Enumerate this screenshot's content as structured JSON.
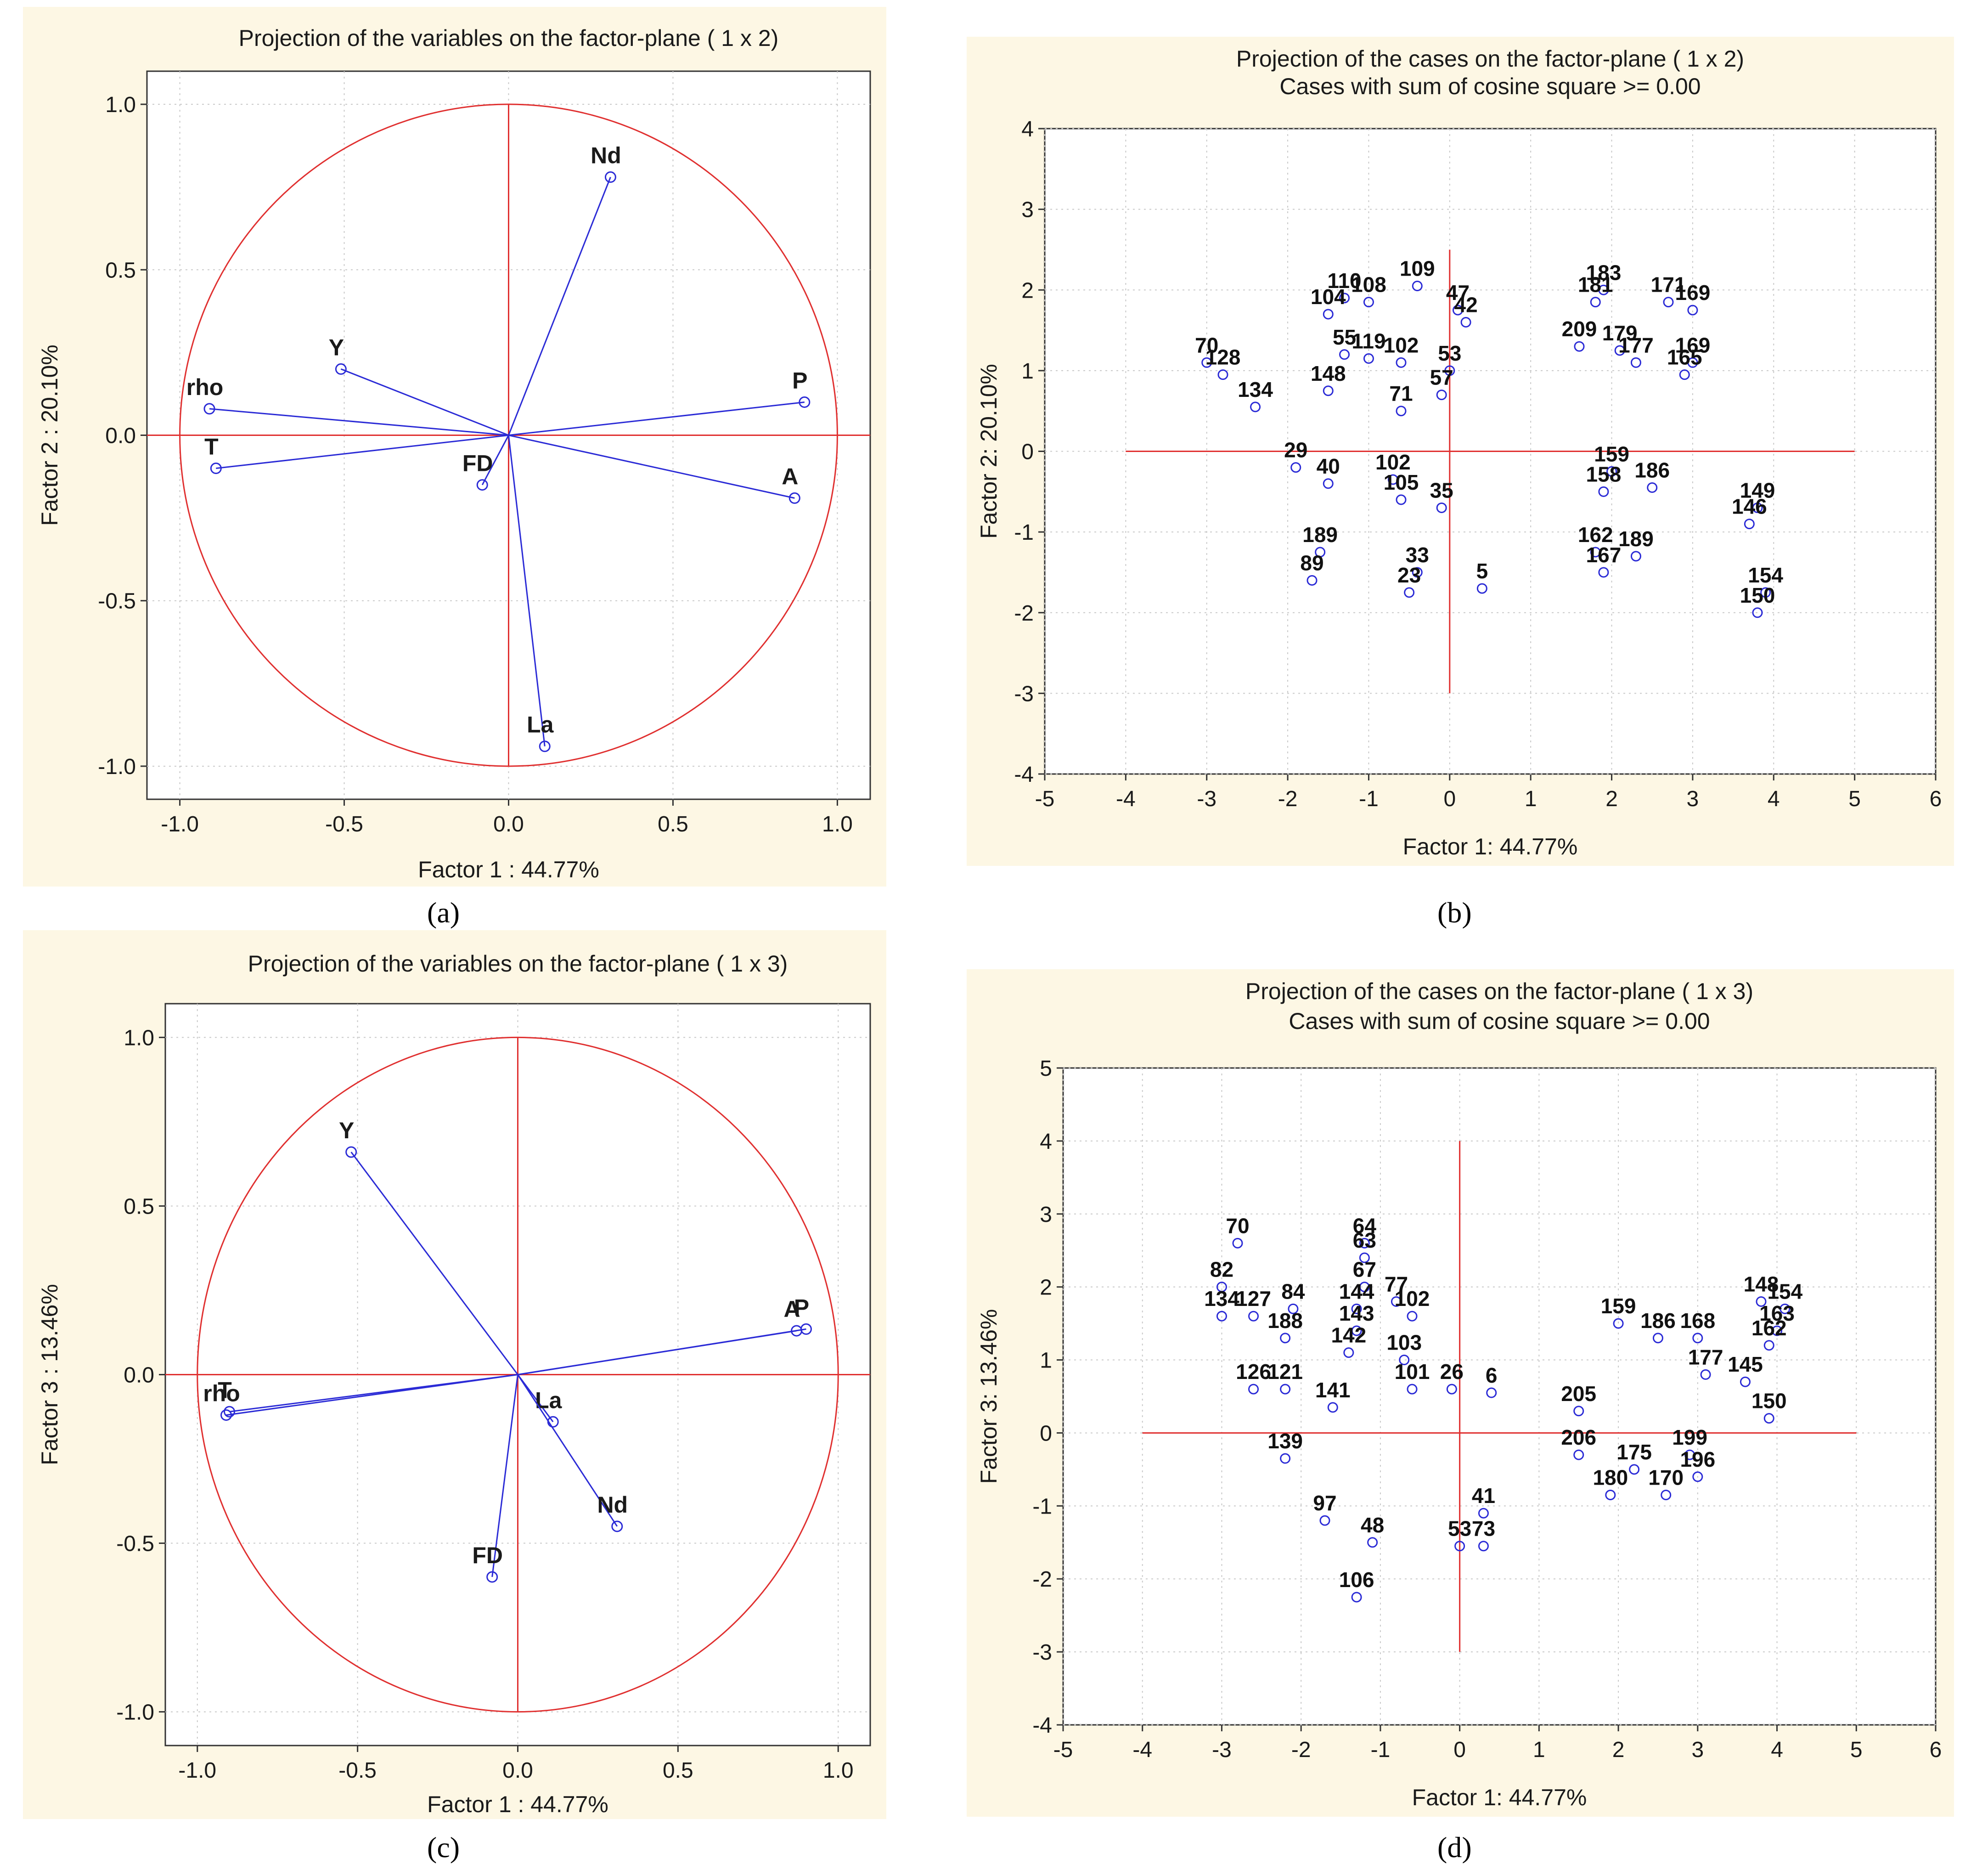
{
  "colors": {
    "background": "#fdf7e4",
    "reference": "#e03030",
    "points": "#2b2bd6",
    "grid": "#c8c8c8"
  },
  "chart_data": [
    {
      "id": "a",
      "type": "scatter",
      "title": "Projection of the variables on the factor-plane (  1 x   2)",
      "subtitle": "",
      "xlabel": "Factor 1 : 44.77%",
      "ylabel": "Factor 2 : 20.10%",
      "xlim": [
        -1.1,
        1.1
      ],
      "ylim": [
        -1.1,
        1.1
      ],
      "xticks": [
        "-1.0",
        "-0.5",
        "0.0",
        "0.5",
        "1.0"
      ],
      "yticks": [
        "1.0",
        "0.5",
        "0.0",
        "-0.5",
        "-1.0"
      ],
      "grid": true,
      "unit_circle": true,
      "points": [
        {
          "label": "Nd",
          "x": 0.31,
          "y": 0.78
        },
        {
          "label": "Y",
          "x": -0.51,
          "y": 0.2
        },
        {
          "label": "rho",
          "x": -0.91,
          "y": 0.08
        },
        {
          "label": "P",
          "x": 0.9,
          "y": 0.1
        },
        {
          "label": "T",
          "x": -0.89,
          "y": -0.1
        },
        {
          "label": "FD",
          "x": -0.08,
          "y": -0.15
        },
        {
          "label": "A",
          "x": 0.87,
          "y": -0.19
        },
        {
          "label": "La",
          "x": 0.11,
          "y": -0.94
        }
      ]
    },
    {
      "id": "b",
      "type": "scatter",
      "title": "Projection of the cases on the factor-plane (  1 x   2)",
      "subtitle": "Cases with sum of cosine square >=  0.00",
      "xlabel": "Factor 1: 44.77%",
      "ylabel": "Factor 2: 20.10%",
      "xlim": [
        -5,
        6
      ],
      "ylim": [
        -4,
        4
      ],
      "xticks": [
        "-5",
        "-4",
        "-3",
        "-2",
        "-1",
        "0",
        "1",
        "2",
        "3",
        "4",
        "5",
        "6"
      ],
      "yticks": [
        "4",
        "3",
        "2",
        "1",
        "0",
        "-1",
        "-2",
        "-3",
        "-4"
      ],
      "grid": true,
      "points": [
        {
          "label": "109",
          "x": -0.4,
          "y": 2.05
        },
        {
          "label": "110",
          "x": -1.3,
          "y": 1.9
        },
        {
          "label": "108",
          "x": -1.0,
          "y": 1.85
        },
        {
          "label": "104",
          "x": -1.5,
          "y": 1.7
        },
        {
          "label": "47",
          "x": 0.1,
          "y": 1.75
        },
        {
          "label": "42",
          "x": 0.2,
          "y": 1.6
        },
        {
          "label": "183",
          "x": 1.9,
          "y": 2.0
        },
        {
          "label": "181",
          "x": 1.8,
          "y": 1.85
        },
        {
          "label": "171",
          "x": 2.7,
          "y": 1.85
        },
        {
          "label": "169",
          "x": 3.0,
          "y": 1.75
        },
        {
          "label": "209",
          "x": 1.6,
          "y": 1.3
        },
        {
          "label": "179",
          "x": 2.1,
          "y": 1.25
        },
        {
          "label": "177",
          "x": 2.3,
          "y": 1.1
        },
        {
          "label": "169",
          "x": 3.0,
          "y": 1.1
        },
        {
          "label": "165",
          "x": 2.9,
          "y": 0.95
        },
        {
          "label": "70",
          "x": -3.0,
          "y": 1.1
        },
        {
          "label": "128",
          "x": -2.8,
          "y": 0.95
        },
        {
          "label": "134",
          "x": -2.4,
          "y": 0.55
        },
        {
          "label": "55",
          "x": -1.3,
          "y": 1.2
        },
        {
          "label": "119",
          "x": -1.0,
          "y": 1.15
        },
        {
          "label": "148",
          "x": -1.5,
          "y": 0.75
        },
        {
          "label": "102",
          "x": -0.6,
          "y": 1.1
        },
        {
          "label": "71",
          "x": -0.6,
          "y": 0.5
        },
        {
          "label": "53",
          "x": 0.0,
          "y": 1.0
        },
        {
          "label": "57",
          "x": -0.1,
          "y": 0.7
        },
        {
          "label": "29",
          "x": -1.9,
          "y": -0.2
        },
        {
          "label": "40",
          "x": -1.5,
          "y": -0.4
        },
        {
          "label": "102",
          "x": -0.7,
          "y": -0.35
        },
        {
          "label": "105",
          "x": -0.6,
          "y": -0.6
        },
        {
          "label": "35",
          "x": -0.1,
          "y": -0.7
        },
        {
          "label": "159",
          "x": 2.0,
          "y": -0.25
        },
        {
          "label": "158",
          "x": 1.9,
          "y": -0.5
        },
        {
          "label": "186",
          "x": 2.5,
          "y": -0.45
        },
        {
          "label": "149",
          "x": 3.8,
          "y": -0.7
        },
        {
          "label": "146",
          "x": 3.7,
          "y": -0.9
        },
        {
          "label": "189",
          "x": -1.6,
          "y": -1.25
        },
        {
          "label": "89",
          "x": -1.7,
          "y": -1.6
        },
        {
          "label": "33",
          "x": -0.4,
          "y": -1.5
        },
        {
          "label": "23",
          "x": -0.5,
          "y": -1.75
        },
        {
          "label": "5",
          "x": 0.4,
          "y": -1.7
        },
        {
          "label": "162",
          "x": 1.8,
          "y": -1.25
        },
        {
          "label": "189",
          "x": 2.3,
          "y": -1.3
        },
        {
          "label": "167",
          "x": 1.9,
          "y": -1.5
        },
        {
          "label": "154",
          "x": 3.9,
          "y": -1.75
        },
        {
          "label": "150",
          "x": 3.8,
          "y": -2.0
        }
      ]
    },
    {
      "id": "c",
      "type": "scatter",
      "title": "Projection of the variables on the factor-plane (  1 x   3)",
      "subtitle": "",
      "xlabel": "Factor 1 : 44.77%",
      "ylabel": "Factor 3 : 13.46%",
      "xlim": [
        -1.1,
        1.1
      ],
      "ylim": [
        -1.1,
        1.1
      ],
      "xticks": [
        "-1.0",
        "-0.5",
        "0.0",
        "0.5",
        "1.0"
      ],
      "yticks": [
        "1.0",
        "0.5",
        "0.0",
        "-0.5",
        "-1.0"
      ],
      "grid": true,
      "unit_circle": true,
      "points": [
        {
          "label": "Y",
          "x": -0.52,
          "y": 0.66
        },
        {
          "label": "A",
          "x": 0.87,
          "y": 0.13
        },
        {
          "label": "P",
          "x": 0.9,
          "y": 0.135
        },
        {
          "label": "T",
          "x": -0.9,
          "y": -0.11
        },
        {
          "label": "rho",
          "x": -0.91,
          "y": -0.12
        },
        {
          "label": "La",
          "x": 0.11,
          "y": -0.14
        },
        {
          "label": "Nd",
          "x": 0.31,
          "y": -0.45
        },
        {
          "label": "FD",
          "x": -0.08,
          "y": -0.6
        }
      ]
    },
    {
      "id": "d",
      "type": "scatter",
      "title": "Projection of the cases on the factor-plane (  1 x   3)",
      "subtitle": "Cases with sum of cosine square >=  0.00",
      "xlabel": "Factor 1: 44.77%",
      "ylabel": "Factor 3: 13.46%",
      "xlim": [
        -5,
        6
      ],
      "ylim": [
        -4,
        5
      ],
      "xticks": [
        "-5",
        "-4",
        "-3",
        "-2",
        "-1",
        "0",
        "1",
        "2",
        "3",
        "4",
        "5",
        "6"
      ],
      "yticks": [
        "5",
        "4",
        "3",
        "2",
        "1",
        "0",
        "-1",
        "-2",
        "-3",
        "-4"
      ],
      "grid": true,
      "points": [
        {
          "label": "70",
          "x": -2.8,
          "y": 2.6
        },
        {
          "label": "64",
          "x": -1.2,
          "y": 2.6
        },
        {
          "label": "63",
          "x": -1.2,
          "y": 2.4
        },
        {
          "label": "67",
          "x": -1.2,
          "y": 2.0
        },
        {
          "label": "77",
          "x": -0.8,
          "y": 1.8
        },
        {
          "label": "82",
          "x": -3.0,
          "y": 2.0
        },
        {
          "label": "84",
          "x": -2.1,
          "y": 1.7
        },
        {
          "label": "144",
          "x": -1.3,
          "y": 1.7
        },
        {
          "label": "102",
          "x": -0.6,
          "y": 1.6
        },
        {
          "label": "143",
          "x": -1.3,
          "y": 1.4
        },
        {
          "label": "134",
          "x": -3.0,
          "y": 1.6
        },
        {
          "label": "127",
          "x": -2.6,
          "y": 1.6
        },
        {
          "label": "188",
          "x": -2.2,
          "y": 1.3
        },
        {
          "label": "142",
          "x": -1.4,
          "y": 1.1
        },
        {
          "label": "103",
          "x": -0.7,
          "y": 1.0
        },
        {
          "label": "126",
          "x": -2.6,
          "y": 0.6
        },
        {
          "label": "121",
          "x": -2.2,
          "y": 0.6
        },
        {
          "label": "101",
          "x": -0.6,
          "y": 0.6
        },
        {
          "label": "26",
          "x": -0.1,
          "y": 0.6
        },
        {
          "label": "6",
          "x": 0.4,
          "y": 0.55
        },
        {
          "label": "141",
          "x": -1.6,
          "y": 0.35
        },
        {
          "label": "139",
          "x": -2.2,
          "y": -0.35
        },
        {
          "label": "97",
          "x": -1.7,
          "y": -1.2
        },
        {
          "label": "106",
          "x": -1.3,
          "y": -2.25
        },
        {
          "label": "48",
          "x": -1.1,
          "y": -1.5
        },
        {
          "label": "41",
          "x": 0.3,
          "y": -1.1
        },
        {
          "label": "53",
          "x": 0.0,
          "y": -1.55
        },
        {
          "label": "73",
          "x": 0.3,
          "y": -1.55
        },
        {
          "label": "159",
          "x": 2.0,
          "y": 1.5
        },
        {
          "label": "168",
          "x": 3.0,
          "y": 1.3
        },
        {
          "label": "186",
          "x": 2.5,
          "y": 1.3
        },
        {
          "label": "148",
          "x": 3.8,
          "y": 1.8
        },
        {
          "label": "154",
          "x": 4.1,
          "y": 1.7
        },
        {
          "label": "163",
          "x": 4.0,
          "y": 1.4
        },
        {
          "label": "162",
          "x": 3.9,
          "y": 1.2
        },
        {
          "label": "145",
          "x": 3.6,
          "y": 0.7
        },
        {
          "label": "150",
          "x": 3.9,
          "y": 0.2
        },
        {
          "label": "177",
          "x": 3.1,
          "y": 0.8
        },
        {
          "label": "205",
          "x": 1.5,
          "y": 0.3
        },
        {
          "label": "206",
          "x": 1.5,
          "y": -0.3
        },
        {
          "label": "175",
          "x": 2.2,
          "y": -0.5
        },
        {
          "label": "180",
          "x": 1.9,
          "y": -0.85
        },
        {
          "label": "170",
          "x": 2.6,
          "y": -0.85
        },
        {
          "label": "199",
          "x": 2.9,
          "y": -0.3
        },
        {
          "label": "196",
          "x": 3.0,
          "y": -0.6
        }
      ]
    }
  ],
  "subfigure_labels": [
    "(a)",
    "(b)",
    "(c)",
    "(d)"
  ]
}
